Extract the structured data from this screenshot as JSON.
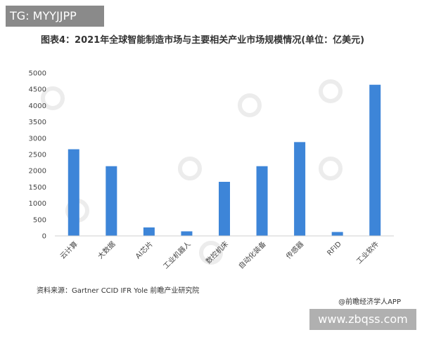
{
  "header_tag": "TG: MYYJJPP",
  "chart_data": {
    "type": "bar",
    "title": "图表4：2021年全球智能制造市场与主要相关产业市场规模情况(单位：亿美元)",
    "categories": [
      "云计算",
      "大数据",
      "AI芯片",
      "工业机器人",
      "数控机床",
      "自动化装备",
      "传感器",
      "RFID",
      "工业软件"
    ],
    "values": [
      2660,
      2140,
      260,
      140,
      1660,
      2140,
      2880,
      120,
      4640
    ],
    "ylim": [
      0,
      5000
    ],
    "yticks": [
      0,
      500,
      1000,
      1500,
      2000,
      2500,
      3000,
      3500,
      4000,
      4500,
      5000
    ],
    "grid": false,
    "bar_color": "#3d85d8"
  },
  "source": "资料来源：Gartner CCID IFR Yole 前瞻产业研究院",
  "brand": "@前瞻经济学人APP",
  "site": "www.zbqss.com"
}
